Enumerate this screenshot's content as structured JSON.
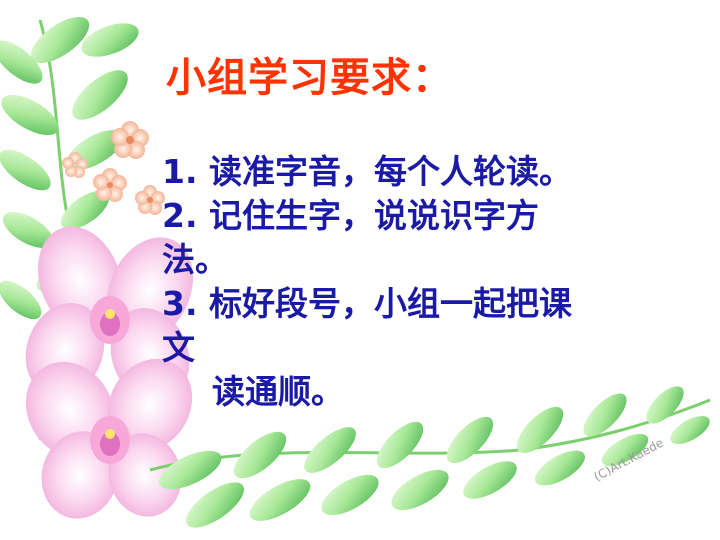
{
  "slide": {
    "title": "小组学习要求：",
    "lines": [
      "1. 读准字音，每个人轮读。",
      "2. 记住生字，说说识字方",
      "法。",
      "3. 标好段号，小组一起把课",
      "文",
      "读通顺。"
    ],
    "watermark": "(C)Art.Kaede"
  },
  "colors": {
    "title": "#ff3300",
    "body": "#1a1aa6",
    "leaf_light": "#ccf5b8",
    "leaf_dark": "#5cc45a",
    "orchid": "#f7c2e6",
    "orchid_center": "#e070c0",
    "blossom": "#f5b79a"
  }
}
